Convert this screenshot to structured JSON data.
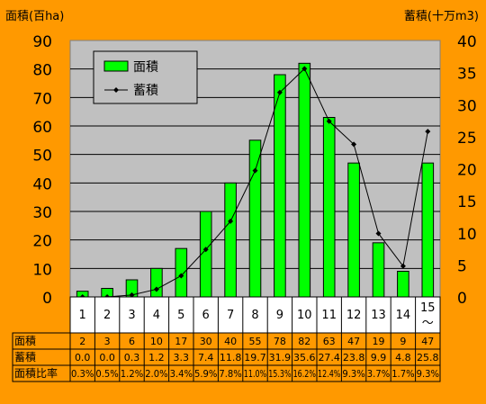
{
  "chart_data": {
    "type": "bar+line",
    "left_axis_title": "面積(百ha)",
    "right_axis_title": "蓄積(十万m3)",
    "categories": [
      "1",
      "2",
      "3",
      "4",
      "5",
      "6",
      "7",
      "8",
      "9",
      "10",
      "11",
      "12",
      "13",
      "14",
      "15\n～"
    ],
    "y_left_lim": [
      0,
      90
    ],
    "y_left_ticks": [
      0,
      10,
      20,
      30,
      40,
      50,
      60,
      70,
      80,
      90
    ],
    "y_right_lim": [
      0,
      40
    ],
    "y_right_ticks": [
      0,
      5,
      10,
      15,
      20,
      25,
      30,
      35,
      40
    ],
    "grid": true,
    "legend_position": "top-left",
    "series": [
      {
        "name": "面積",
        "kind": "bar",
        "axis": "left",
        "color": "#00FF00",
        "values": [
          2,
          3,
          6,
          10,
          17,
          30,
          40,
          55,
          78,
          82,
          63,
          47,
          19,
          9,
          47
        ]
      },
      {
        "name": "蓄積",
        "kind": "line",
        "axis": "right",
        "color": "#000000",
        "values": [
          0.0,
          0.0,
          0.3,
          1.2,
          3.3,
          7.4,
          11.8,
          19.7,
          31.9,
          35.6,
          27.4,
          23.8,
          9.9,
          4.8,
          25.8
        ]
      }
    ],
    "table": {
      "rows": [
        {
          "label": "面積",
          "values": [
            "2",
            "3",
            "6",
            "10",
            "17",
            "30",
            "40",
            "55",
            "78",
            "82",
            "63",
            "47",
            "19",
            "9",
            "47"
          ]
        },
        {
          "label": "蓄積",
          "values": [
            "0.0",
            "0.0",
            "0.3",
            "1.2",
            "3.3",
            "7.4",
            "11.8",
            "19.7",
            "31.9",
            "35.6",
            "27.4",
            "23.8",
            "9.9",
            "4.8",
            "25.8"
          ]
        },
        {
          "label": "面積比率",
          "values": [
            "0.3%",
            "0.5%",
            "1.2%",
            "2.0%",
            "3.4%",
            "5.9%",
            "7.8%",
            "11.0%",
            "15.3%",
            "16.2%",
            "12.4%",
            "9.3%",
            "3.7%",
            "1.7%",
            "9.3%"
          ]
        }
      ]
    },
    "colors": {
      "background": "#FF9900",
      "plot_area": "#C0C0C0",
      "bar": "#00FF00"
    }
  }
}
